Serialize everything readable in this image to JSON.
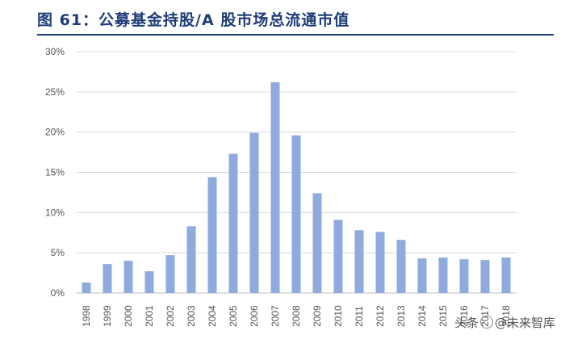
{
  "title": "图 61：公募基金持股/A 股市场总流通市值",
  "watermark": {
    "prefix": "头条",
    "handle": "@未来智库"
  },
  "colors": {
    "bar": "#8faadc",
    "title": "#1f3c78",
    "grid": "#d9d9d9"
  },
  "chart_data": {
    "type": "bar",
    "title": "图 61：公募基金持股/A 股市场总流通市值",
    "categories": [
      "1998",
      "1999",
      "2000",
      "2001",
      "2002",
      "2003",
      "2004",
      "2005",
      "2006",
      "2007",
      "2008",
      "2009",
      "2010",
      "2011",
      "2012",
      "2013",
      "2014",
      "2015",
      "2016",
      "2017",
      "2018"
    ],
    "values": [
      1.3,
      3.6,
      4.0,
      2.7,
      4.7,
      8.3,
      14.4,
      17.3,
      19.9,
      26.2,
      19.6,
      12.4,
      9.1,
      7.8,
      7.6,
      6.6,
      4.3,
      4.4,
      4.2,
      4.1,
      4.4
    ],
    "yticks": [
      "0%",
      "5%",
      "10%",
      "15%",
      "20%",
      "25%",
      "30%"
    ],
    "ylim": [
      0,
      30
    ],
    "unit": "%",
    "grid": true,
    "xlabel": "",
    "ylabel": ""
  }
}
